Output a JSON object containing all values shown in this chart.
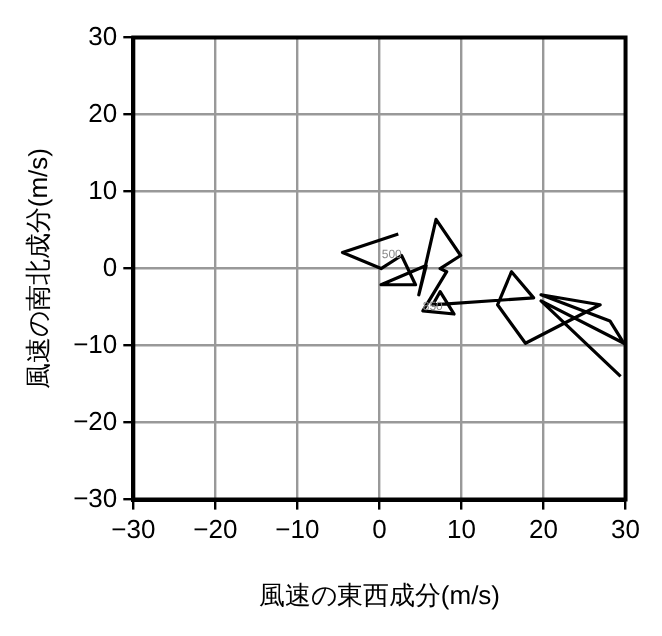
{
  "chart_data": {
    "type": "line",
    "xlabel": "風速の東西成分(m/s)",
    "ylabel": "風速の南北成分(m/s)",
    "xlim": [
      -30,
      30
    ],
    "ylim": [
      -30,
      30
    ],
    "xticks": [
      -30,
      -20,
      -10,
      0,
      10,
      20,
      30
    ],
    "yticks": [
      -30,
      -20,
      -10,
      0,
      10,
      20,
      30
    ],
    "grid": true,
    "legend": false,
    "marker": "none",
    "series": [
      {
        "color": "#000000",
        "x": [
          2.3,
          -4.5,
          0.2,
          2.7,
          4.4,
          0.2,
          5.7,
          4.8,
          6.9,
          9.9,
          7.4,
          8.2,
          5.3,
          9.1,
          7.4,
          6.5,
          18.8,
          16.1,
          14.4,
          17.8,
          26.9,
          19.7,
          28.1,
          29.8,
          19.7,
          29.4
        ],
        "values": [
          4.5,
          2.1,
          0,
          1.7,
          -2.1,
          -2.1,
          0.4,
          -3.4,
          6.4,
          1.7,
          0,
          -0.4,
          -5.5,
          -5.9,
          -3.0,
          -4.7,
          -3.8,
          -0.4,
          -4.7,
          -9.7,
          -4.7,
          -3.4,
          -6.8,
          -9.7,
          -4.2,
          -14
        ]
      }
    ],
    "annotations": [
      {
        "text": "500",
        "x": 1.5,
        "y": 1.8
      },
      {
        "text": "850",
        "x": 6.5,
        "y": -5
      }
    ]
  }
}
